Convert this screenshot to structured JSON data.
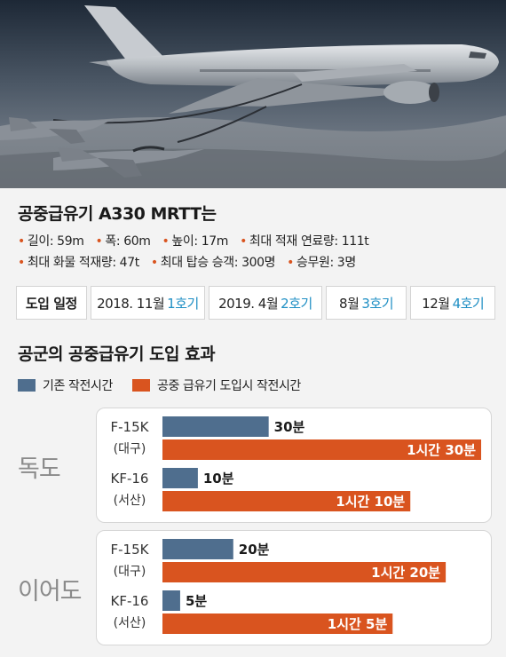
{
  "spec": {
    "title": "공중급유기 A330 MRTT는",
    "row1": [
      "길이: 59m",
      "폭: 60m",
      "높이: 17m",
      "최대 적재 연료량: 111t"
    ],
    "row2": [
      "최대 화물 적재량: 47t",
      "최대 탑승 승객: 300명",
      "승무원: 3명"
    ]
  },
  "schedule": {
    "label": "도입 일정",
    "items": [
      {
        "date": "2018. 11월",
        "unit": "1호기"
      },
      {
        "date": "2019. 4월",
        "unit": "2호기"
      },
      {
        "date": "8월",
        "unit": "3호기"
      },
      {
        "date": "12월",
        "unit": "4호기"
      }
    ]
  },
  "colors": {
    "existing": "#4f6e8e",
    "with_tanker": "#d9541f",
    "schedule_accent": "#1f8fc4",
    "bullet": "#d9541f"
  },
  "chart_data": {
    "type": "bar",
    "orientation": "horizontal",
    "title": "공군의 공중급유기 도입 효과",
    "unit": "minutes",
    "series": [
      {
        "name": "기존 작전시간",
        "color": "#4f6e8e"
      },
      {
        "name": "공중 급유기 도입시 작전시간",
        "color": "#d9541f"
      }
    ],
    "groups": [
      {
        "region": "독도",
        "aircraft": [
          {
            "name": "F-15K",
            "base": "(대구)",
            "existing": 30,
            "existing_label": "30분",
            "with_tanker": 90,
            "with_tanker_label": "1시간 30분"
          },
          {
            "name": "KF-16",
            "base": "(서산)",
            "existing": 10,
            "existing_label": "10분",
            "with_tanker": 70,
            "with_tanker_label": "1시간 10분"
          }
        ]
      },
      {
        "region": "이어도",
        "aircraft": [
          {
            "name": "F-15K",
            "base": "(대구)",
            "existing": 20,
            "existing_label": "20분",
            "with_tanker": 80,
            "with_tanker_label": "1시간 20분"
          },
          {
            "name": "KF-16",
            "base": "(서산)",
            "existing": 5,
            "existing_label": "5분",
            "with_tanker": 65,
            "with_tanker_label": "1시간 5분"
          }
        ]
      }
    ],
    "xlim": [
      0,
      90
    ],
    "grid": false,
    "legend_placement": "top-left"
  }
}
